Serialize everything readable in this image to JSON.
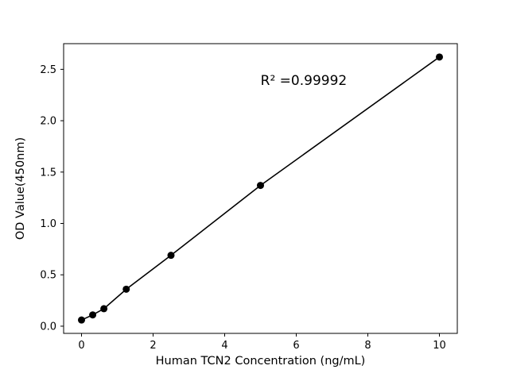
{
  "figure": {
    "background": "#ffffff"
  },
  "chart_data": {
    "type": "scatter",
    "title": "",
    "xlabel": "Human TCN2 Concentration (ng/mL)",
    "ylabel": "OD Value(450nm)",
    "annotation": "R² =0.99992",
    "x": [
      0,
      0.3125,
      0.625,
      1.25,
      2.5,
      5,
      10
    ],
    "y": [
      0.06,
      0.11,
      0.17,
      0.36,
      0.69,
      1.37,
      2.62
    ],
    "line": true,
    "xlim": [
      -0.5,
      10.5
    ],
    "ylim": [
      -0.07,
      2.75
    ],
    "xticks": [
      0,
      2,
      4,
      6,
      8,
      10
    ],
    "yticks": [
      0.0,
      0.5,
      1.0,
      1.5,
      2.0,
      2.5
    ],
    "grid": false,
    "legend": "none",
    "marker_color": "#000000",
    "line_color": "#000000",
    "axis_color": "#000000",
    "background": "#ffffff"
  }
}
